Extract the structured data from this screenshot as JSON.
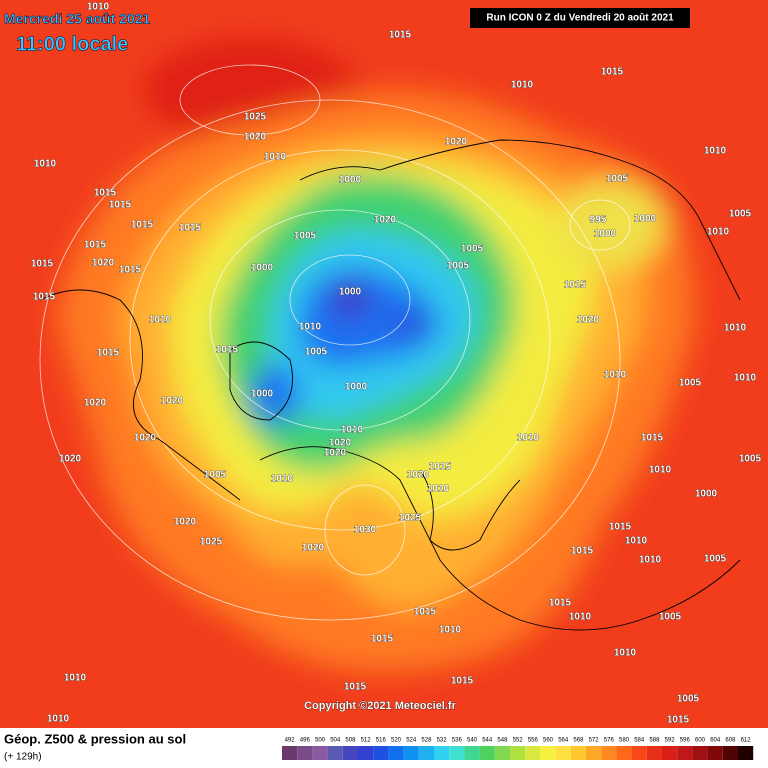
{
  "header": {
    "date": "Mercredi 25 août 2021",
    "time": "11:00 locale",
    "run": "Run ICON 0 Z du Vendredi 20 août 2021"
  },
  "copyright": "Copyright ©2021 Meteociel.fr",
  "footer": {
    "title": "Géop. Z500 & pression au sol",
    "lead": "(+ 129h)"
  },
  "legend": {
    "values": [
      492,
      496,
      500,
      504,
      508,
      512,
      516,
      520,
      524,
      528,
      532,
      536,
      540,
      544,
      548,
      552,
      556,
      560,
      564,
      568,
      572,
      576,
      580,
      584,
      588,
      592,
      596,
      600,
      604,
      608,
      612
    ],
    "colors": [
      "#6a3a6a",
      "#7a4a8a",
      "#8a5aa0",
      "#5a5ab0",
      "#4646c0",
      "#3040d0",
      "#2050e0",
      "#1070f0",
      "#1090f0",
      "#20b0f0",
      "#30d0f0",
      "#40e0d0",
      "#40d890",
      "#50d060",
      "#80d850",
      "#b0e040",
      "#d8e840",
      "#f8f040",
      "#ffe040",
      "#ffc830",
      "#ffa828",
      "#ff8820",
      "#ff6818",
      "#f84818",
      "#e83018",
      "#d82018",
      "#c01818",
      "#a01010",
      "#800808",
      "#500404",
      "#200000"
    ]
  },
  "isobars": [
    1010,
    1015,
    1015,
    1010,
    1025,
    1020,
    1010,
    1020,
    1010,
    1010,
    1000,
    1005,
    1015,
    1015,
    1015,
    1015,
    1020,
    995,
    1000,
    1000,
    1005,
    1005,
    1015,
    1010,
    1005,
    1005,
    1015,
    1020,
    1000,
    1015,
    1015,
    1000,
    1015,
    1010,
    1020,
    1010,
    1015,
    1005,
    1015,
    1000,
    1000,
    1010,
    1020,
    1020,
    1010,
    1010,
    1020,
    1020,
    1020,
    1020,
    1015,
    1020,
    1005,
    1010,
    1010,
    1030,
    1020,
    1025,
    1025,
    1020,
    1015,
    1015,
    1010,
    1015,
    1010,
    1015,
    1015,
    1010,
    1010,
    1005,
    1010,
    1005,
    1000,
    1015,
    1005,
    1010,
    1010,
    1015,
    1010,
    1015,
    1005,
    1010,
    1005,
    1015,
    1010
  ]
}
